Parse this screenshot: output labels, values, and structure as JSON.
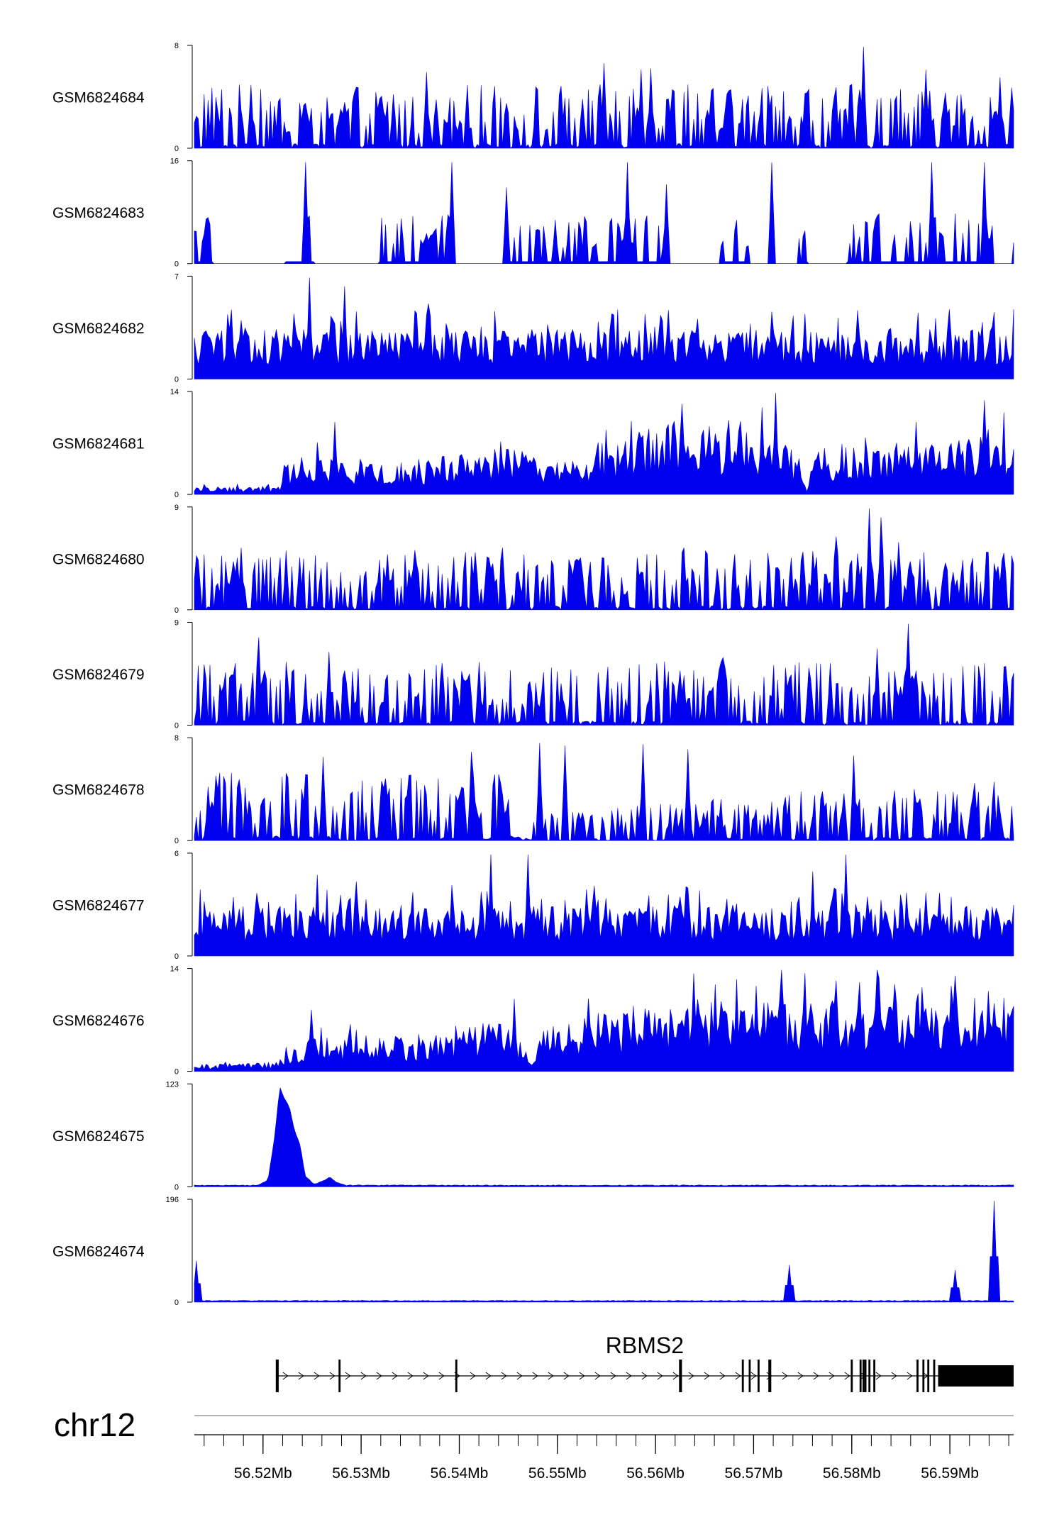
{
  "chart_data": {
    "type": "area",
    "title": "",
    "region_start_mb": 56.513,
    "region_end_mb": 56.5965,
    "fill_color": "#0000ee",
    "tracks": [
      {
        "name": "GSM6824684",
        "ymax": 8,
        "ymin": 0,
        "pattern": "spiky",
        "base": 0.3,
        "peaks": [
          {
            "x": 56.5812,
            "h": 8
          },
          {
            "x": 56.5548,
            "h": 6.7
          },
          {
            "x": 56.5595,
            "h": 6.3
          },
          {
            "x": 56.5585,
            "h": 6.2
          },
          {
            "x": 56.5875,
            "h": 6.2
          },
          {
            "x": 56.5367,
            "h": 6.0
          },
          {
            "x": 56.5952,
            "h": 5.6
          },
          {
            "x": 56.5188,
            "h": 5.0
          }
        ]
      },
      {
        "name": "GSM6824683",
        "ymax": 16,
        "ymin": 0,
        "pattern": "sparse",
        "base": 0.38,
        "peaks": [
          {
            "x": 56.5243,
            "h": 16
          },
          {
            "x": 56.5393,
            "h": 16
          },
          {
            "x": 56.5718,
            "h": 16
          },
          {
            "x": 56.5572,
            "h": 16
          },
          {
            "x": 56.5882,
            "h": 16
          },
          {
            "x": 56.5935,
            "h": 16
          },
          {
            "x": 56.5448,
            "h": 12
          },
          {
            "x": 56.5612,
            "h": 12.5
          }
        ],
        "gaps": [
          {
            "from": 56.5148,
            "to": 56.5222
          },
          {
            "from": 56.5252,
            "to": 56.5318
          },
          {
            "from": 56.5395,
            "to": 56.5452
          },
          {
            "from": 56.5612,
            "to": 56.5665
          },
          {
            "from": 56.5695,
            "to": 56.5745
          },
          {
            "from": 56.5755,
            "to": 56.5795
          },
          {
            "from": 56.5945,
            "to": 56.5965
          }
        ]
      },
      {
        "name": "GSM6824682",
        "ymax": 7,
        "ymin": 0,
        "pattern": "dense",
        "base": 0.35,
        "peaks": [
          {
            "x": 56.5248,
            "h": 7
          },
          {
            "x": 56.5283,
            "h": 6.4
          },
          {
            "x": 56.5232,
            "h": 4.5
          },
          {
            "x": 56.5368,
            "h": 5.2
          },
          {
            "x": 56.5555,
            "h": 4.5
          },
          {
            "x": 56.5605,
            "h": 4.4
          },
          {
            "x": 56.5752,
            "h": 4.5
          }
        ]
      },
      {
        "name": "GSM6824681",
        "ymax": 14,
        "ymin": 0,
        "pattern": "broad",
        "base": 0.3,
        "ramp": [
          [
            56.513,
            0.06
          ],
          [
            56.5215,
            0.06
          ],
          [
            56.5225,
            0.22
          ],
          [
            56.5245,
            0.3
          ],
          [
            56.5325,
            0.25
          ],
          [
            56.5383,
            0.28
          ],
          [
            56.5445,
            0.35
          ],
          [
            56.5525,
            0.22
          ],
          [
            56.5535,
            0.38
          ],
          [
            56.5625,
            0.55
          ],
          [
            56.5735,
            0.4
          ],
          [
            56.5755,
            0.05
          ],
          [
            56.5765,
            0.35
          ],
          [
            56.5965,
            0.45
          ]
        ],
        "peaks": [
          {
            "x": 56.5722,
            "h": 14
          },
          {
            "x": 56.5628,
            "h": 12.5
          },
          {
            "x": 56.5935,
            "h": 13
          },
          {
            "x": 56.5865,
            "h": 10
          },
          {
            "x": 56.5273,
            "h": 10
          },
          {
            "x": 56.5708,
            "h": 12
          }
        ]
      },
      {
        "name": "GSM6824680",
        "ymax": 9,
        "ymin": 0,
        "pattern": "spiky",
        "base": 0.28,
        "peaks": [
          {
            "x": 56.5818,
            "h": 9
          },
          {
            "x": 56.583,
            "h": 8.2
          },
          {
            "x": 56.5785,
            "h": 6.5
          },
          {
            "x": 56.5848,
            "h": 6.0
          },
          {
            "x": 56.5178,
            "h": 5.5
          },
          {
            "x": 56.5445,
            "h": 5.5
          },
          {
            "x": 56.563,
            "h": 5.5
          },
          {
            "x": 56.5805,
            "h": 5.0
          }
        ]
      },
      {
        "name": "GSM6824679",
        "ymax": 9,
        "ymin": 0,
        "pattern": "spiky",
        "base": 0.3,
        "peaks": [
          {
            "x": 56.5858,
            "h": 9
          },
          {
            "x": 56.5825,
            "h": 6.8
          },
          {
            "x": 56.5195,
            "h": 7.8
          },
          {
            "x": 56.5268,
            "h": 6.5
          },
          {
            "x": 56.5668,
            "h": 6.0
          },
          {
            "x": 56.5778,
            "h": 5.5
          }
        ]
      },
      {
        "name": "GSM6824678",
        "ymax": 8,
        "ymin": 0,
        "pattern": "spiky",
        "base": 0.32,
        "ramp": [
          [
            56.513,
            0.32
          ],
          [
            56.5468,
            0.32
          ],
          [
            56.5472,
            0.12
          ],
          [
            56.5965,
            0.32
          ]
        ],
        "peaks": [
          {
            "x": 56.5413,
            "h": 7
          },
          {
            "x": 56.5482,
            "h": 7.7
          },
          {
            "x": 56.5508,
            "h": 7.5
          },
          {
            "x": 56.5588,
            "h": 7.6
          },
          {
            "x": 56.5632,
            "h": 7.2
          },
          {
            "x": 56.5802,
            "h": 6.7
          },
          {
            "x": 56.5262,
            "h": 6.6
          }
        ]
      },
      {
        "name": "GSM6824677",
        "ymax": 6,
        "ymin": 0,
        "pattern": "dense",
        "base": 0.35,
        "peaks": [
          {
            "x": 56.5432,
            "h": 6
          },
          {
            "x": 56.547,
            "h": 6
          },
          {
            "x": 56.5795,
            "h": 6
          },
          {
            "x": 56.576,
            "h": 5
          },
          {
            "x": 56.5255,
            "h": 4.8
          },
          {
            "x": 56.5295,
            "h": 4.4
          }
        ]
      },
      {
        "name": "GSM6824676",
        "ymax": 14,
        "ymin": 0,
        "pattern": "broad",
        "base": 0.3,
        "ramp": [
          [
            56.513,
            0.05
          ],
          [
            56.5215,
            0.07
          ],
          [
            56.5235,
            0.22
          ],
          [
            56.5265,
            0.3
          ],
          [
            56.5335,
            0.26
          ],
          [
            56.5385,
            0.3
          ],
          [
            56.5445,
            0.4
          ],
          [
            56.5475,
            0.08
          ],
          [
            56.5485,
            0.33
          ],
          [
            56.5535,
            0.42
          ],
          [
            56.5625,
            0.55
          ],
          [
            56.5965,
            0.5
          ]
        ],
        "peaks": [
          {
            "x": 56.5728,
            "h": 14
          },
          {
            "x": 56.5825,
            "h": 14
          },
          {
            "x": 56.5638,
            "h": 13.5
          },
          {
            "x": 56.5905,
            "h": 13.2
          },
          {
            "x": 56.566,
            "h": 12
          },
          {
            "x": 56.5808,
            "h": 12.3
          },
          {
            "x": 56.525,
            "h": 8.5
          },
          {
            "x": 56.5457,
            "h": 10
          }
        ]
      },
      {
        "name": "GSM6824675",
        "ymax": 123,
        "ymin": 0,
        "pattern": "flat",
        "base": 0.01,
        "ramp": [
          [
            56.513,
            0.01
          ],
          [
            56.5195,
            0.01
          ],
          [
            56.5205,
            0.06
          ],
          [
            56.5212,
            0.5
          ],
          [
            56.5217,
            0.98
          ],
          [
            56.5222,
            0.86
          ],
          [
            56.5227,
            0.78
          ],
          [
            56.5232,
            0.55
          ],
          [
            56.5238,
            0.4
          ],
          [
            56.5243,
            0.1
          ],
          [
            56.5252,
            0.02
          ],
          [
            56.526,
            0.05
          ],
          [
            56.5268,
            0.09
          ],
          [
            56.5275,
            0.04
          ],
          [
            56.5285,
            0.01
          ],
          [
            56.5965,
            0.01
          ]
        ],
        "peaks": []
      },
      {
        "name": "GSM6824674",
        "ymax": 196,
        "ymin": 0,
        "pattern": "flat",
        "base": 0.01,
        "peaks": [
          {
            "x": 56.5131,
            "h": 80
          },
          {
            "x": 56.5737,
            "h": 72
          },
          {
            "x": 56.5905,
            "h": 62
          },
          {
            "x": 56.5945,
            "h": 196
          }
        ]
      }
    ],
    "gene_track": {
      "gene_name": "RBMS2",
      "strand": "+",
      "tx_start_mb": 56.5213,
      "tx_end_mb": 56.5965,
      "exons_mb": [
        [
          56.5213,
          56.5216
        ],
        [
          56.5277,
          56.5279
        ],
        [
          56.5396,
          56.5398
        ],
        [
          56.5624,
          56.5627
        ],
        [
          56.5688,
          56.569
        ],
        [
          56.5695,
          56.5697
        ],
        [
          56.5704,
          56.5706
        ],
        [
          56.5715,
          56.5718
        ],
        [
          56.5799,
          56.5801
        ],
        [
          56.5808,
          56.581
        ],
        [
          56.5811,
          56.5813
        ],
        [
          56.5813,
          56.5815
        ],
        [
          56.5817,
          56.5819
        ],
        [
          56.5822,
          56.5824
        ],
        [
          56.5866,
          56.5868
        ],
        [
          56.5872,
          56.5874
        ],
        [
          56.5877,
          56.5879
        ],
        [
          56.5883,
          56.5885
        ],
        [
          56.5888,
          56.5965
        ]
      ]
    },
    "axis": {
      "chrom": "chr12",
      "major_ticks_mb": [
        56.52,
        56.53,
        56.54,
        56.55,
        56.56,
        56.57,
        56.58,
        56.59
      ],
      "tick_labels": [
        "56.52Mb",
        "56.53Mb",
        "56.54Mb",
        "56.55Mb",
        "56.56Mb",
        "56.57Mb",
        "56.58Mb",
        "56.59Mb"
      ],
      "minor_tick_step_mb": 0.002
    }
  }
}
